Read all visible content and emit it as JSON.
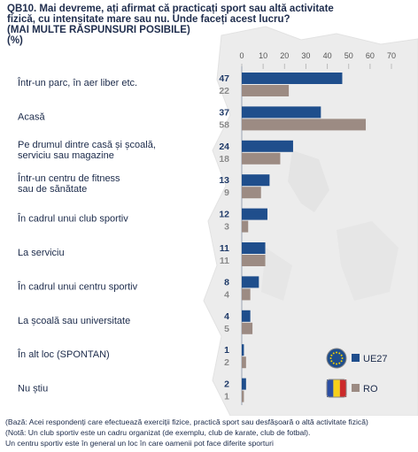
{
  "title_lines": [
    "QB10. Mai devreme, ați afirmat că practicați sport sau altă activitate",
    "fizică, cu intensitate mare sau nu. Unde faceți acest lucru?",
    "(MAI MULTE RĂSPUNSURI POSIBILE)",
    "(%)"
  ],
  "colors": {
    "eu": "#1f4e8c",
    "ro": "#9c8b83"
  },
  "chart_data": {
    "type": "bar",
    "orientation": "horizontal",
    "xlim": [
      0,
      70
    ],
    "ticks": [
      "0",
      "10",
      "20",
      "30",
      "40",
      "50",
      "60",
      "70"
    ],
    "categories": [
      [
        "Într-un parc, în aer liber etc."
      ],
      [
        "Acasă"
      ],
      [
        "Pe drumul dintre casă și școală,",
        "serviciu sau magazine"
      ],
      [
        "Într-un centru de fitness",
        "sau de sănătate"
      ],
      [
        "În cadrul unui club sportiv"
      ],
      [
        "La serviciu"
      ],
      [
        "În cadrul unui centru sportiv"
      ],
      [
        "La școală sau universitate"
      ],
      [
        "În alt loc (SPONTAN)"
      ],
      [
        "Nu știu"
      ]
    ],
    "series": [
      {
        "name": "UE27",
        "values": [
          47,
          37,
          24,
          13,
          12,
          11,
          8,
          4,
          1,
          2
        ]
      },
      {
        "name": "RO",
        "values": [
          22,
          58,
          18,
          9,
          3,
          11,
          4,
          5,
          2,
          1
        ]
      }
    ],
    "legend_position": "bottom-right"
  },
  "notes": [
    "(Bază: Acei respondenți care efectuează exerciții fizice, practică sport sau desfășoară o altă activitate fizică)",
    "(Notă: Un club sportiv este un cadru organizat (de exemplu, club de karate, club de fotbal).",
    "Un centru sportiv este în general un loc în care oamenii pot face diferite sporturi"
  ]
}
